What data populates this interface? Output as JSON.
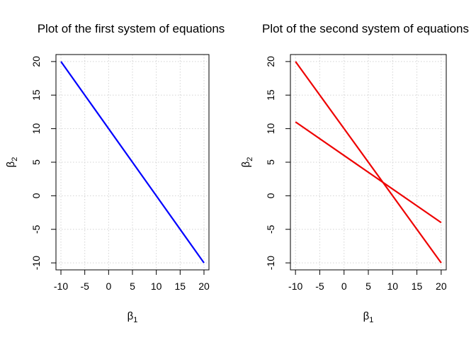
{
  "chart_data": [
    {
      "type": "line",
      "title": "Plot of the first system of equations",
      "xlabel": "β",
      "xlabel_sub": "1",
      "ylabel": "β",
      "ylabel_sub": "2",
      "xlim": [
        -10,
        20
      ],
      "ylim": [
        -10,
        20
      ],
      "xticks": [
        -10,
        -5,
        0,
        5,
        10,
        15,
        20
      ],
      "yticks": [
        -10,
        -5,
        0,
        5,
        10,
        15,
        20
      ],
      "grid": true,
      "series": [
        {
          "x": [
            -10,
            20
          ],
          "y": [
            20,
            -10
          ],
          "color": "#0000ff"
        }
      ]
    },
    {
      "type": "line",
      "title": "Plot of the second system of equations",
      "xlabel": "β",
      "xlabel_sub": "1",
      "ylabel": "β",
      "ylabel_sub": "2",
      "xlim": [
        -10,
        20
      ],
      "ylim": [
        -10,
        20
      ],
      "xticks": [
        -10,
        -5,
        0,
        5,
        10,
        15,
        20
      ],
      "yticks": [
        -10,
        -5,
        0,
        5,
        10,
        15,
        20
      ],
      "grid": true,
      "series": [
        {
          "x": [
            -10,
            20
          ],
          "y": [
            20,
            -10
          ],
          "color": "#ee0000"
        },
        {
          "x": [
            -10,
            20
          ],
          "y": [
            11,
            -4
          ],
          "color": "#ee0000"
        }
      ]
    }
  ]
}
